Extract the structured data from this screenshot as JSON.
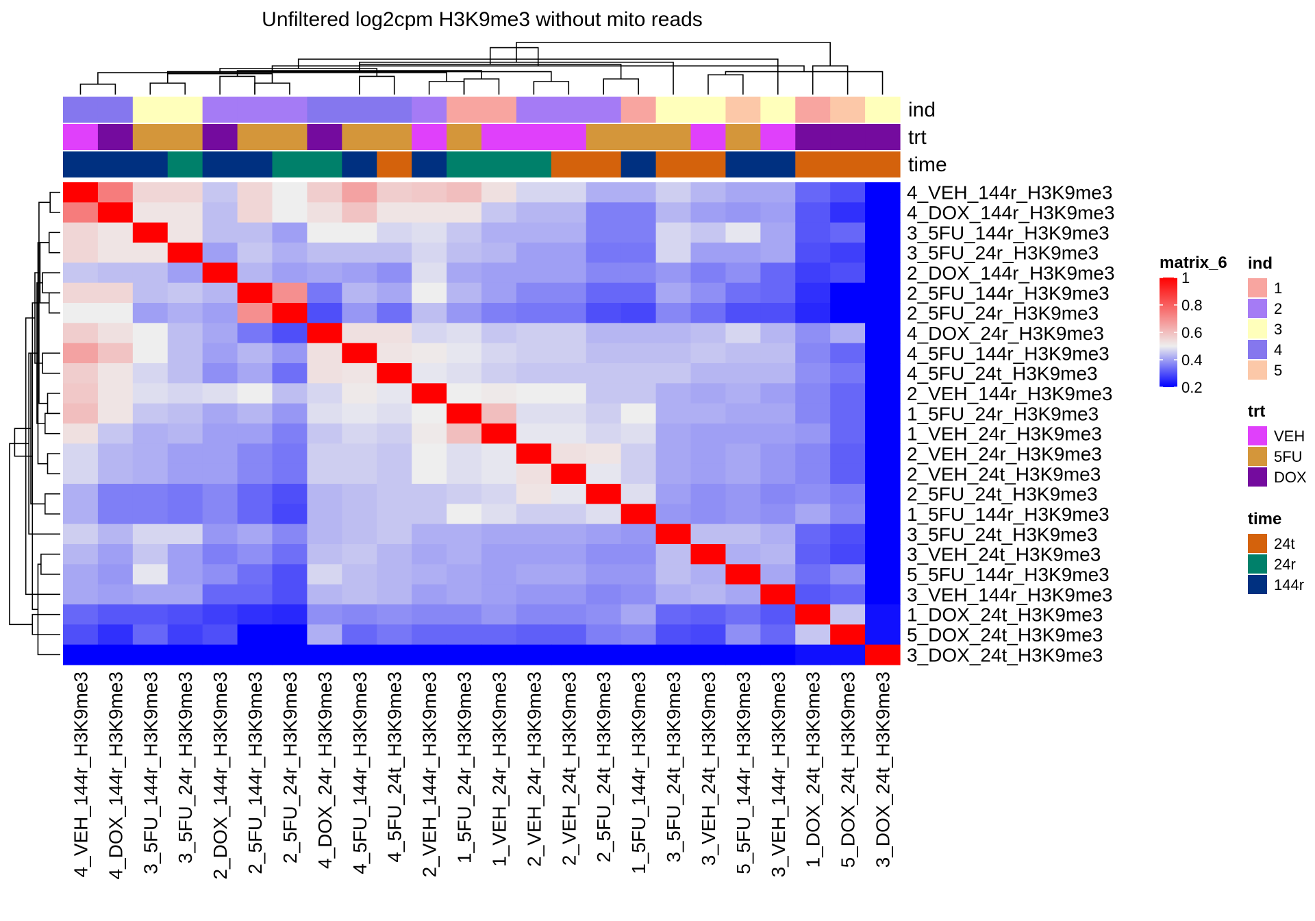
{
  "chart_data": {
    "type": "heatmap",
    "title": "Unfiltered log2cpm H3K9me3 without mito reads",
    "samples": [
      "4_VEH_144r_H3K9me3",
      "4_DOX_144r_H3K9me3",
      "3_5FU_144r_H3K9me3",
      "3_5FU_24r_H3K9me3",
      "2_DOX_144r_H3K9me3",
      "2_5FU_144r_H3K9me3",
      "2_5FU_24r_H3K9me3",
      "4_DOX_24r_H3K9me3",
      "4_5FU_144r_H3K9me3",
      "4_5FU_24t_H3K9me3",
      "2_VEH_144r_H3K9me3",
      "1_5FU_24r_H3K9me3",
      "1_VEH_24r_H3K9me3",
      "2_VEH_24r_H3K9me3",
      "2_VEH_24t_H3K9me3",
      "2_5FU_24t_H3K9me3",
      "1_5FU_144r_H3K9me3",
      "3_5FU_24t_H3K9me3",
      "3_VEH_24t_H3K9me3",
      "5_5FU_144r_H3K9me3",
      "3_VEH_144r_H3K9me3",
      "1_DOX_24t_H3K9me3",
      "5_DOX_24t_H3K9me3",
      "3_DOX_24t_H3K9me3"
    ],
    "values": [
      [
        1.0,
        0.74,
        0.55,
        0.55,
        0.45,
        0.55,
        0.5,
        0.57,
        0.66,
        0.57,
        0.58,
        0.6,
        0.53,
        0.47,
        0.47,
        0.42,
        0.42,
        0.46,
        0.43,
        0.41,
        0.41,
        0.33,
        0.3,
        0.12
      ],
      [
        0.74,
        1.0,
        0.52,
        0.52,
        0.44,
        0.55,
        0.5,
        0.53,
        0.59,
        0.52,
        0.52,
        0.52,
        0.45,
        0.43,
        0.43,
        0.36,
        0.36,
        0.43,
        0.4,
        0.39,
        0.4,
        0.31,
        0.26,
        0.11
      ],
      [
        0.55,
        0.52,
        1.0,
        0.52,
        0.44,
        0.44,
        0.4,
        0.5,
        0.5,
        0.47,
        0.48,
        0.45,
        0.42,
        0.42,
        0.42,
        0.36,
        0.36,
        0.47,
        0.45,
        0.49,
        0.41,
        0.31,
        0.33,
        0.14
      ],
      [
        0.55,
        0.52,
        0.52,
        1.0,
        0.4,
        0.45,
        0.42,
        0.44,
        0.44,
        0.44,
        0.47,
        0.44,
        0.43,
        0.4,
        0.4,
        0.35,
        0.35,
        0.47,
        0.4,
        0.4,
        0.41,
        0.3,
        0.28,
        0.14
      ],
      [
        0.45,
        0.44,
        0.44,
        0.4,
        1.0,
        0.43,
        0.4,
        0.41,
        0.4,
        0.38,
        0.48,
        0.41,
        0.4,
        0.4,
        0.4,
        0.37,
        0.37,
        0.39,
        0.36,
        0.38,
        0.33,
        0.28,
        0.3,
        0.11
      ],
      [
        0.55,
        0.55,
        0.44,
        0.45,
        0.43,
        1.0,
        0.7,
        0.35,
        0.43,
        0.41,
        0.5,
        0.43,
        0.4,
        0.37,
        0.37,
        0.33,
        0.33,
        0.41,
        0.38,
        0.34,
        0.33,
        0.26,
        0.18,
        0.12
      ],
      [
        0.5,
        0.5,
        0.4,
        0.42,
        0.4,
        0.7,
        1.0,
        0.3,
        0.39,
        0.34,
        0.44,
        0.39,
        0.36,
        0.35,
        0.35,
        0.3,
        0.29,
        0.37,
        0.34,
        0.3,
        0.3,
        0.25,
        0.15,
        0.12
      ],
      [
        0.57,
        0.53,
        0.5,
        0.44,
        0.41,
        0.35,
        0.3,
        1.0,
        0.53,
        0.53,
        0.47,
        0.48,
        0.45,
        0.46,
        0.46,
        0.43,
        0.43,
        0.43,
        0.44,
        0.47,
        0.43,
        0.38,
        0.42,
        0.14
      ],
      [
        0.66,
        0.59,
        0.5,
        0.44,
        0.4,
        0.43,
        0.39,
        0.53,
        1.0,
        0.52,
        0.51,
        0.49,
        0.47,
        0.46,
        0.46,
        0.44,
        0.44,
        0.44,
        0.45,
        0.44,
        0.44,
        0.37,
        0.33,
        0.12
      ],
      [
        0.57,
        0.52,
        0.47,
        0.44,
        0.38,
        0.41,
        0.34,
        0.53,
        0.52,
        1.0,
        0.49,
        0.48,
        0.46,
        0.45,
        0.45,
        0.45,
        0.45,
        0.45,
        0.43,
        0.43,
        0.43,
        0.38,
        0.35,
        0.16
      ],
      [
        0.58,
        0.52,
        0.48,
        0.47,
        0.48,
        0.5,
        0.44,
        0.47,
        0.51,
        0.49,
        1.0,
        0.5,
        0.51,
        0.5,
        0.5,
        0.45,
        0.45,
        0.42,
        0.41,
        0.42,
        0.4,
        0.37,
        0.33,
        0.14
      ],
      [
        0.6,
        0.52,
        0.45,
        0.44,
        0.41,
        0.43,
        0.39,
        0.48,
        0.49,
        0.48,
        0.5,
        1.0,
        0.6,
        0.48,
        0.48,
        0.46,
        0.5,
        0.42,
        0.42,
        0.41,
        0.41,
        0.37,
        0.33,
        0.1
      ],
      [
        0.53,
        0.45,
        0.42,
        0.43,
        0.4,
        0.4,
        0.36,
        0.45,
        0.47,
        0.46,
        0.51,
        0.6,
        1.0,
        0.49,
        0.49,
        0.47,
        0.48,
        0.41,
        0.4,
        0.4,
        0.4,
        0.39,
        0.33,
        0.13
      ],
      [
        0.47,
        0.43,
        0.42,
        0.4,
        0.4,
        0.37,
        0.35,
        0.46,
        0.46,
        0.45,
        0.5,
        0.48,
        0.49,
        1.0,
        0.53,
        0.52,
        0.46,
        0.41,
        0.4,
        0.41,
        0.39,
        0.37,
        0.32,
        0.13
      ],
      [
        0.47,
        0.43,
        0.42,
        0.4,
        0.4,
        0.37,
        0.35,
        0.46,
        0.46,
        0.45,
        0.5,
        0.48,
        0.49,
        0.53,
        1.0,
        0.49,
        0.46,
        0.41,
        0.4,
        0.41,
        0.39,
        0.37,
        0.32,
        0.13
      ],
      [
        0.42,
        0.36,
        0.36,
        0.35,
        0.37,
        0.33,
        0.3,
        0.43,
        0.44,
        0.45,
        0.45,
        0.46,
        0.47,
        0.52,
        0.49,
        1.0,
        0.48,
        0.4,
        0.38,
        0.39,
        0.37,
        0.38,
        0.36,
        0.14
      ],
      [
        0.42,
        0.36,
        0.36,
        0.35,
        0.37,
        0.33,
        0.29,
        0.43,
        0.44,
        0.45,
        0.45,
        0.5,
        0.48,
        0.46,
        0.46,
        0.48,
        1.0,
        0.39,
        0.38,
        0.39,
        0.38,
        0.41,
        0.37,
        0.15
      ],
      [
        0.46,
        0.43,
        0.47,
        0.47,
        0.39,
        0.41,
        0.37,
        0.43,
        0.44,
        0.45,
        0.42,
        0.42,
        0.41,
        0.41,
        0.41,
        0.4,
        0.39,
        1.0,
        0.44,
        0.44,
        0.42,
        0.33,
        0.3,
        0.13
      ],
      [
        0.43,
        0.4,
        0.45,
        0.4,
        0.36,
        0.38,
        0.34,
        0.44,
        0.45,
        0.43,
        0.41,
        0.42,
        0.4,
        0.4,
        0.4,
        0.38,
        0.38,
        0.44,
        1.0,
        0.42,
        0.43,
        0.32,
        0.29,
        0.14
      ],
      [
        0.41,
        0.39,
        0.49,
        0.4,
        0.38,
        0.34,
        0.3,
        0.47,
        0.44,
        0.43,
        0.42,
        0.41,
        0.4,
        0.41,
        0.41,
        0.39,
        0.39,
        0.44,
        0.42,
        1.0,
        0.41,
        0.34,
        0.38,
        0.14
      ],
      [
        0.41,
        0.4,
        0.41,
        0.41,
        0.33,
        0.33,
        0.3,
        0.43,
        0.44,
        0.43,
        0.4,
        0.41,
        0.4,
        0.39,
        0.39,
        0.37,
        0.38,
        0.42,
        0.43,
        0.41,
        1.0,
        0.31,
        0.33,
        0.1
      ],
      [
        0.33,
        0.31,
        0.31,
        0.3,
        0.28,
        0.26,
        0.25,
        0.38,
        0.37,
        0.38,
        0.37,
        0.37,
        0.39,
        0.37,
        0.37,
        0.38,
        0.41,
        0.33,
        0.32,
        0.34,
        0.31,
        1.0,
        0.45,
        0.22
      ],
      [
        0.3,
        0.26,
        0.33,
        0.28,
        0.3,
        0.18,
        0.15,
        0.42,
        0.33,
        0.35,
        0.33,
        0.33,
        0.33,
        0.32,
        0.32,
        0.36,
        0.37,
        0.3,
        0.29,
        0.38,
        0.33,
        0.45,
        1.0,
        0.22
      ],
      [
        0.12,
        0.11,
        0.14,
        0.14,
        0.11,
        0.12,
        0.12,
        0.14,
        0.12,
        0.16,
        0.14,
        0.1,
        0.13,
        0.13,
        0.13,
        0.14,
        0.15,
        0.13,
        0.14,
        0.14,
        0.1,
        0.22,
        0.22,
        1.0
      ]
    ],
    "annotations": {
      "ind": [
        "4",
        "4",
        "3",
        "3",
        "2",
        "2",
        "2",
        "4",
        "4",
        "4",
        "2",
        "1",
        "1",
        "2",
        "2",
        "2",
        "1",
        "3",
        "3",
        "5",
        "3",
        "1",
        "5",
        "3"
      ],
      "trt": [
        "VEH",
        "DOX",
        "5FU",
        "5FU",
        "DOX",
        "5FU",
        "5FU",
        "DOX",
        "5FU",
        "5FU",
        "VEH",
        "5FU",
        "VEH",
        "VEH",
        "VEH",
        "5FU",
        "5FU",
        "5FU",
        "VEH",
        "5FU",
        "VEH",
        "DOX",
        "DOX",
        "DOX"
      ],
      "time": [
        "144r",
        "144r",
        "144r",
        "24r",
        "144r",
        "144r",
        "24r",
        "24r",
        "144r",
        "24t",
        "144r",
        "24r",
        "24r",
        "24r",
        "24t",
        "24t",
        "144r",
        "24t",
        "24t",
        "144r",
        "144r",
        "24t",
        "24t",
        "24t"
      ]
    },
    "annotation_order": [
      "ind",
      "trt",
      "time"
    ],
    "col_dendrogram": [
      [
        0,
        1,
        20
      ],
      [
        5,
        6,
        22
      ],
      [
        2,
        3,
        22
      ],
      [
        10,
        11,
        25
      ],
      [
        13,
        14,
        25
      ],
      [
        11,
        12,
        30
      ],
      [
        15,
        16,
        30
      ],
      [
        8,
        9,
        35
      ],
      [
        18,
        19,
        38
      ],
      [
        4,
        5,
        35
      ],
      [
        24,
        27,
        42
      ],
      [
        25,
        26,
        40
      ],
      [
        32,
        23,
        44
      ],
      [
        29,
        33,
        46
      ],
      [
        26,
        28,
        44
      ],
      [
        31,
        35,
        50
      ],
      [
        34,
        36,
        55
      ],
      [
        30,
        37,
        58
      ],
      [
        38,
        17,
        62
      ],
      [
        21,
        22,
        55
      ],
      [
        39,
        20,
        68
      ],
      [
        40,
        41,
        90
      ],
      [
        42,
        43,
        100
      ]
    ],
    "row_dendrogram": [
      [
        0,
        1,
        20
      ],
      [
        5,
        6,
        22
      ],
      [
        2,
        3,
        22
      ],
      [
        10,
        11,
        25
      ],
      [
        13,
        14,
        25
      ],
      [
        11,
        12,
        30
      ],
      [
        15,
        16,
        30
      ],
      [
        8,
        9,
        35
      ],
      [
        18,
        19,
        38
      ],
      [
        4,
        5,
        35
      ],
      [
        24,
        27,
        42
      ],
      [
        25,
        26,
        40
      ],
      [
        32,
        23,
        44
      ],
      [
        29,
        33,
        46
      ],
      [
        26,
        28,
        44
      ],
      [
        31,
        35,
        50
      ],
      [
        34,
        36,
        55
      ],
      [
        30,
        37,
        58
      ],
      [
        38,
        17,
        62
      ],
      [
        21,
        22,
        55
      ],
      [
        39,
        20,
        68
      ],
      [
        40,
        41,
        90
      ],
      [
        42,
        43,
        100
      ]
    ],
    "color_scale": {
      "name": "matrix_6",
      "stops": [
        [
          0.2,
          "#0000FF"
        ],
        [
          0.5,
          "#EEEEEE"
        ],
        [
          1.0,
          "#FF0000"
        ]
      ],
      "ticks": [
        "1",
        "0.8",
        "0.6",
        "0.4",
        "0.2"
      ]
    },
    "legends": [
      {
        "key": "ind",
        "title": "ind",
        "items": [
          {
            "label": "1",
            "color": "#F8A5A0"
          },
          {
            "label": "2",
            "color": "#A57BF5"
          },
          {
            "label": "3",
            "color": "#FFFFBB"
          },
          {
            "label": "4",
            "color": "#8577EE"
          },
          {
            "label": "5",
            "color": "#FCC8A8"
          }
        ]
      },
      {
        "key": "trt",
        "title": "trt",
        "items": [
          {
            "label": "VEH",
            "color": "#E040FB"
          },
          {
            "label": "5FU",
            "color": "#D4963A"
          },
          {
            "label": "DOX",
            "color": "#740B9E"
          }
        ]
      },
      {
        "key": "time",
        "title": "time",
        "items": [
          {
            "label": "24t",
            "color": "#D4620C"
          },
          {
            "label": "24r",
            "color": "#00806A"
          },
          {
            "label": "144r",
            "color": "#003080"
          }
        ]
      }
    ]
  }
}
